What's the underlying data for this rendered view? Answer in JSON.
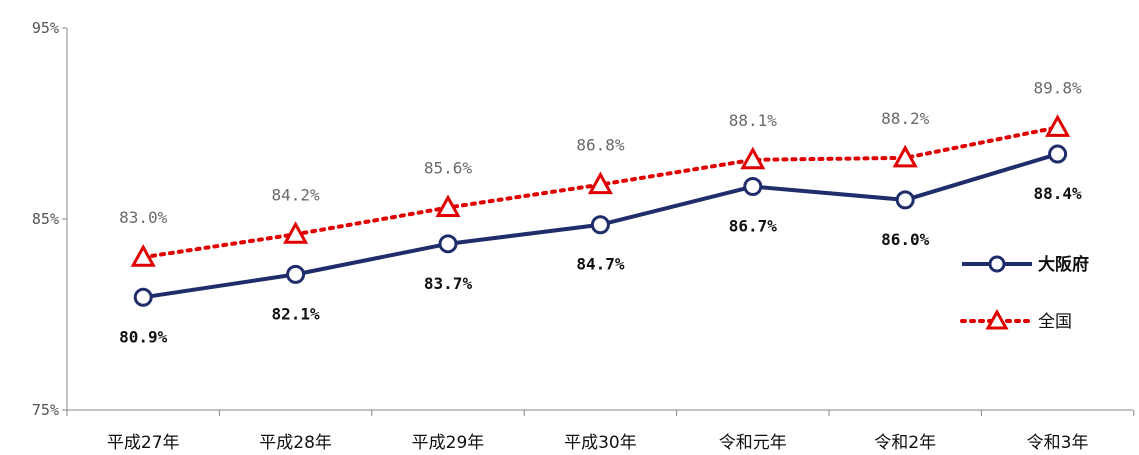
{
  "chart_data": {
    "type": "line",
    "categories": [
      "平成27年",
      "平成28年",
      "平成29年",
      "平成30年",
      "令和元年",
      "令和2年",
      "令和3年"
    ],
    "yticks": [
      "75%",
      "85%",
      "95%"
    ],
    "ylim": [
      75,
      95
    ],
    "grid": false,
    "legend_position": "right",
    "series": [
      {
        "name": "大阪府",
        "values": [
          80.9,
          82.1,
          83.7,
          84.7,
          86.7,
          86.0,
          88.4
        ],
        "labels": [
          "80.9%",
          "82.1%",
          "83.7%",
          "84.7%",
          "86.7%",
          "86.0%",
          "88.4%"
        ],
        "color": "#1f2d6b",
        "marker": "circle",
        "line_style": "solid"
      },
      {
        "name": "全国",
        "values": [
          83.0,
          84.2,
          85.6,
          86.8,
          88.1,
          88.2,
          89.8
        ],
        "labels": [
          "83.0%",
          "84.2%",
          "85.6%",
          "86.8%",
          "88.1%",
          "88.2%",
          "89.8%"
        ],
        "color": "#e00000",
        "marker": "triangle",
        "line_style": "dotted"
      }
    ]
  }
}
